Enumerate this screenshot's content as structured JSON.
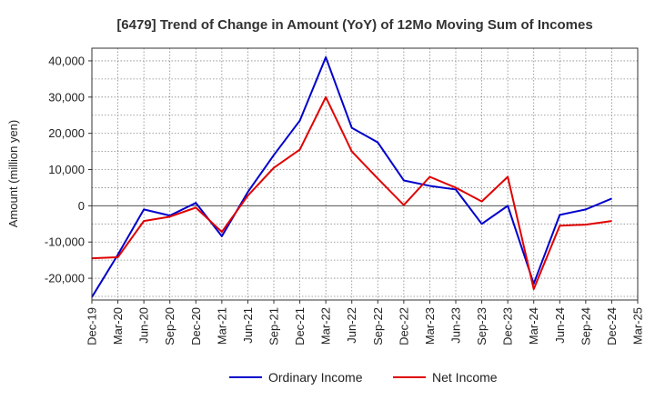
{
  "chart_data": {
    "type": "line",
    "title": "[6479]  Trend of Change in Amount (YoY) of 12Mo Moving Sum of Incomes",
    "xlabel": "",
    "ylabel": "Amount (million yen)",
    "ylim": [
      -26000,
      43500
    ],
    "yticks": [
      -20000,
      -10000,
      0,
      10000,
      20000,
      30000,
      40000
    ],
    "ytick_labels": [
      "-20,000",
      "-10,000",
      "0",
      "10,000",
      "20,000",
      "30,000",
      "40,000"
    ],
    "categories": [
      "Dec-19",
      "Mar-20",
      "Jun-20",
      "Sep-20",
      "Dec-20",
      "Mar-21",
      "Jun-21",
      "Sep-21",
      "Dec-21",
      "Mar-22",
      "Jun-22",
      "Sep-22",
      "Dec-22",
      "Mar-23",
      "Jun-23",
      "Sep-23",
      "Dec-23",
      "Mar-24",
      "Jun-24",
      "Sep-24",
      "Dec-24",
      "Mar-25"
    ],
    "grid": true,
    "legend_position": "bottom",
    "series": [
      {
        "name": "Ordinary Income",
        "color": "#0000cc",
        "values": [
          -25200,
          -13500,
          -1000,
          -2700,
          800,
          -8400,
          3800,
          14000,
          23500,
          41000,
          21500,
          17500,
          7000,
          5500,
          4500,
          -5000,
          0,
          -21500,
          -2500,
          -1000,
          2000,
          null
        ]
      },
      {
        "name": "Net Income",
        "color": "#e00000",
        "values": [
          -14500,
          -14200,
          -4200,
          -3000,
          -500,
          -7200,
          2800,
          10500,
          15500,
          30000,
          15000,
          7500,
          200,
          8000,
          5000,
          1200,
          8000,
          -23000,
          -5500,
          -5200,
          -4200,
          null
        ]
      }
    ]
  }
}
